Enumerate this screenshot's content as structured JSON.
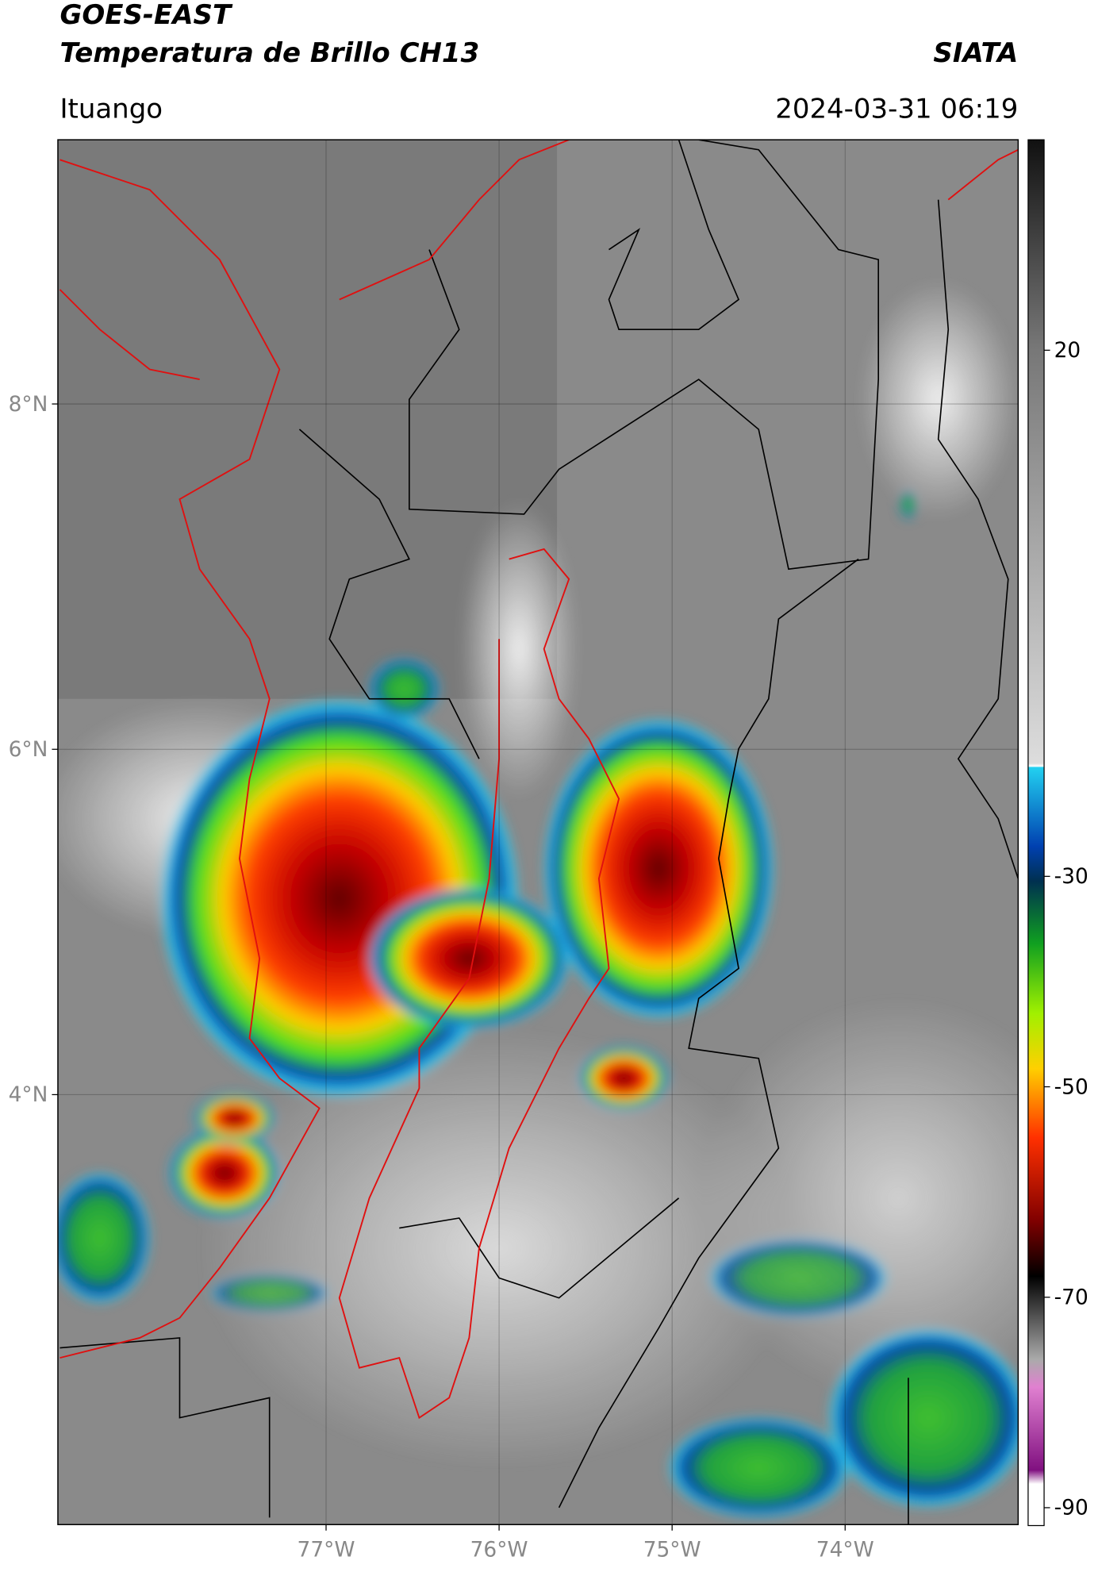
{
  "header": {
    "title": "GOES-EAST",
    "subtitle": "Temperatura de Brillo CH13",
    "source": "SIATA",
    "location": "Ituango",
    "datetime": "2024-03-31 06:19"
  },
  "map": {
    "lonlim": [
      -78.55,
      -73.0
    ],
    "latlim": [
      1.51,
      9.53
    ],
    "lon_ticks": [
      {
        "value": -77,
        "label": "77°W"
      },
      {
        "value": -76,
        "label": "76°W"
      },
      {
        "value": -75,
        "label": "75°W"
      },
      {
        "value": -74,
        "label": "74°W"
      }
    ],
    "lat_ticks": [
      {
        "value": 8,
        "label": "8°N"
      },
      {
        "value": 6,
        "label": "6°N"
      },
      {
        "value": 4,
        "label": "4°N"
      }
    ]
  },
  "colorbar": {
    "range": [
      -91.7,
      40
    ],
    "ticks": [
      20,
      -30,
      -50,
      -70,
      -90
    ]
  }
}
